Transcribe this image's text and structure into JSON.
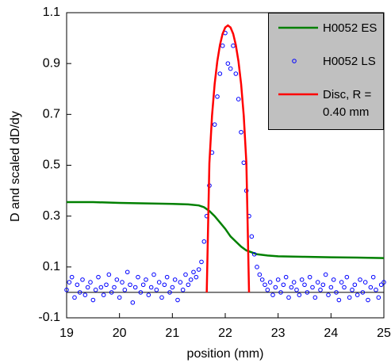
{
  "chart_data": {
    "type": "line",
    "xlabel": "position (mm)",
    "ylabel": "D and scaled dD/dy",
    "xlim": [
      19,
      25
    ],
    "xticks": [
      19,
      20,
      21,
      22,
      23,
      24,
      25
    ],
    "ylim": [
      -0.1,
      1.1
    ],
    "yticks": [
      -0.1,
      0.1,
      0.3,
      0.5,
      0.7,
      0.9,
      1.1
    ],
    "legend": "upper right",
    "series": [
      {
        "name": "H0052 ES",
        "type": "line",
        "color": "#008000",
        "x": [
          19,
          19.5,
          20,
          20.5,
          21,
          21.3,
          21.5,
          21.6,
          21.7,
          21.8,
          21.9,
          22.0,
          22.1,
          22.2,
          22.3,
          22.4,
          22.6,
          22.8,
          23.0,
          23.5,
          24,
          24.5,
          25
        ],
        "values": [
          0.355,
          0.355,
          0.352,
          0.35,
          0.348,
          0.346,
          0.342,
          0.335,
          0.32,
          0.3,
          0.275,
          0.25,
          0.22,
          0.2,
          0.18,
          0.165,
          0.15,
          0.145,
          0.142,
          0.14,
          0.138,
          0.137,
          0.135
        ]
      },
      {
        "name": "H0052 LS",
        "type": "scatter",
        "color": "#0000ff",
        "x": [
          19.0,
          19.05,
          19.1,
          19.15,
          19.2,
          19.25,
          19.3,
          19.35,
          19.4,
          19.45,
          19.5,
          19.55,
          19.6,
          19.65,
          19.7,
          19.75,
          19.8,
          19.85,
          19.9,
          19.95,
          20.0,
          20.05,
          20.1,
          20.15,
          20.2,
          20.25,
          20.3,
          20.35,
          20.4,
          20.45,
          20.5,
          20.55,
          20.6,
          20.65,
          20.7,
          20.75,
          20.8,
          20.85,
          20.9,
          20.95,
          21.0,
          21.05,
          21.1,
          21.15,
          21.2,
          21.25,
          21.3,
          21.35,
          21.4,
          21.45,
          21.5,
          21.55,
          21.6,
          21.65,
          21.7,
          21.75,
          21.8,
          21.85,
          21.9,
          21.95,
          22.0,
          22.05,
          22.1,
          22.15,
          22.2,
          22.25,
          22.3,
          22.35,
          22.4,
          22.45,
          22.5,
          22.55,
          22.6,
          22.65,
          22.7,
          22.75,
          22.8,
          22.85,
          22.9,
          22.95,
          23.0,
          23.05,
          23.1,
          23.15,
          23.2,
          23.25,
          23.3,
          23.35,
          23.4,
          23.45,
          23.5,
          23.55,
          23.6,
          23.65,
          23.7,
          23.75,
          23.8,
          23.85,
          23.9,
          23.95,
          24.0,
          24.05,
          24.1,
          24.15,
          24.2,
          24.25,
          24.3,
          24.35,
          24.4,
          24.45,
          24.5,
          24.55,
          24.6,
          24.65,
          24.7,
          24.75,
          24.8,
          24.85,
          24.9,
          24.95,
          25.0
        ],
        "values": [
          0.01,
          0.04,
          0.06,
          -0.02,
          0.03,
          0.0,
          0.05,
          -0.01,
          0.02,
          0.04,
          -0.03,
          0.01,
          0.06,
          0.02,
          -0.01,
          0.03,
          0.07,
          0.0,
          0.02,
          0.05,
          -0.02,
          0.04,
          0.01,
          0.08,
          0.03,
          -0.04,
          0.02,
          0.06,
          0.0,
          0.03,
          0.05,
          -0.01,
          0.02,
          0.07,
          0.01,
          0.04,
          -0.02,
          0.03,
          0.06,
          0.0,
          0.02,
          0.05,
          -0.03,
          0.04,
          0.01,
          0.07,
          0.03,
          0.05,
          0.08,
          0.06,
          0.09,
          0.12,
          0.2,
          0.3,
          0.42,
          0.55,
          0.66,
          0.77,
          0.86,
          0.97,
          1.02,
          0.9,
          0.88,
          0.97,
          0.86,
          0.76,
          0.63,
          0.51,
          0.4,
          0.3,
          0.22,
          0.15,
          0.1,
          0.07,
          0.05,
          0.03,
          0.01,
          0.04,
          -0.01,
          0.02,
          0.05,
          0.0,
          0.03,
          0.06,
          -0.02,
          0.02,
          0.04,
          0.01,
          -0.01,
          0.05,
          0.03,
          0.0,
          0.06,
          0.02,
          -0.02,
          0.04,
          0.01,
          0.03,
          0.07,
          -0.01,
          0.02,
          0.05,
          0.0,
          -0.03,
          0.04,
          0.02,
          0.06,
          -0.02,
          0.01,
          0.03,
          -0.01,
          0.05,
          0.0,
          0.04,
          -0.03,
          0.02,
          0.06,
          0.01,
          -0.02,
          0.03,
          0.04
        ]
      },
      {
        "name": "Disc, R = 0.40 mm",
        "type": "line",
        "color": "#ff0000",
        "x": [
          21.65,
          21.7,
          21.75,
          21.8,
          21.85,
          21.9,
          21.95,
          22.0,
          22.05,
          22.1,
          22.15,
          22.2,
          22.25,
          22.3,
          22.35,
          22.4,
          22.45
        ],
        "values": [
          0,
          0.508,
          0.695,
          0.82,
          0.909,
          0.973,
          1.017,
          1.042,
          1.05,
          1.042,
          1.017,
          0.973,
          0.909,
          0.82,
          0.695,
          0.508,
          0
        ]
      }
    ]
  }
}
